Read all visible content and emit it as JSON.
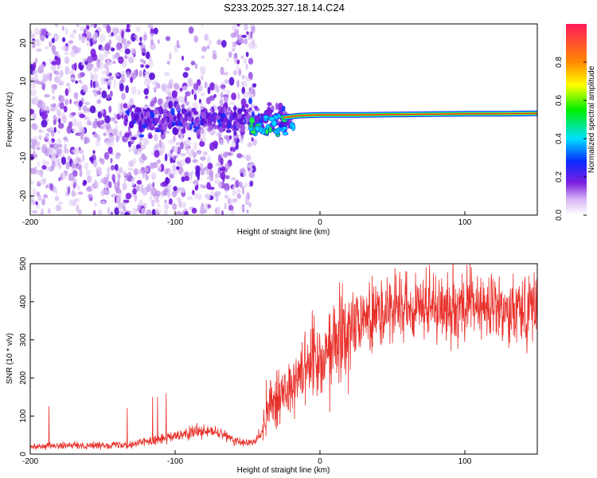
{
  "title": "S233.2025.327.18.14.C24",
  "colors": {
    "snr_line": "#e8302a",
    "ridge": "#e8302a",
    "frame": "#000000"
  },
  "chart_data": [
    {
      "type": "heatmap",
      "name": "spectrogram",
      "xlabel": "Height of straight line (km)",
      "ylabel": "Frequency (Hz)",
      "xlim": [
        -200,
        150
      ],
      "ylim": [
        -25,
        25
      ],
      "xticks": [
        -200,
        -100,
        0,
        100
      ],
      "yticks": [
        -20,
        -10,
        0,
        10,
        20
      ],
      "colorbar": {
        "label": "Normalized spectral amplitude",
        "range": [
          0,
          1
        ],
        "ticks": [
          0.0,
          0.2,
          0.4,
          0.6,
          0.8
        ],
        "tick_labels": [
          "0.0",
          "0.2",
          "0.4",
          "0.6",
          "0.8"
        ]
      },
      "ridge": {
        "description": "narrow high-amplitude line",
        "x": [
          -25,
          -15,
          0,
          25,
          50,
          75,
          100,
          125,
          150
        ],
        "freq": [
          0.5,
          1.0,
          1.2,
          1.2,
          1.3,
          1.4,
          1.5,
          1.5,
          1.6
        ]
      },
      "noise_region_x": [
        -200,
        -50
      ]
    },
    {
      "type": "line",
      "name": "snr",
      "xlabel": "Height of straight line (km)",
      "ylabel": "SNR (10 * v/v)",
      "xlim": [
        -200,
        150
      ],
      "ylim": [
        0,
        500
      ],
      "xticks": [
        -200,
        -100,
        0,
        100
      ],
      "yticks": [
        0,
        100,
        200,
        300,
        400,
        500
      ],
      "trend": {
        "x": [
          -200,
          -130,
          -120,
          -100,
          -85,
          -70,
          -55,
          -45,
          -40,
          -35,
          -25,
          -20,
          -15,
          -10,
          -5,
          0,
          5,
          10,
          15,
          20,
          25,
          30,
          40,
          60,
          80,
          90,
          100,
          120,
          150
        ],
        "y": [
          20,
          25,
          35,
          45,
          60,
          55,
          30,
          30,
          60,
          130,
          170,
          170,
          220,
          230,
          240,
          250,
          280,
          300,
          320,
          330,
          350,
          360,
          375,
          380,
          385,
          390,
          385,
          385,
          390
        ]
      }
    }
  ]
}
